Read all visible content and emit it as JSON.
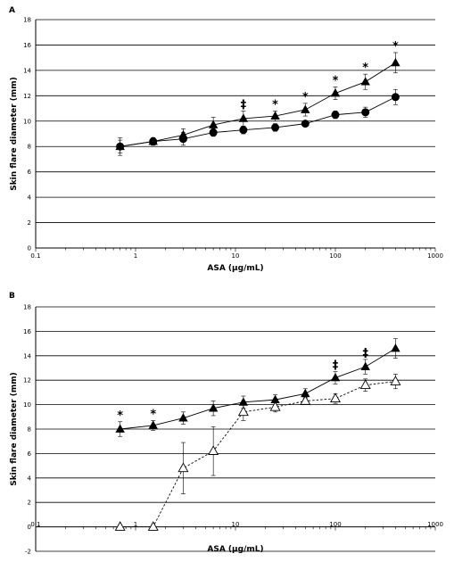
{
  "chart_data": [
    {
      "panel_label": "A",
      "type": "line",
      "xlabel": "ASA (µg/mL)",
      "ylabel": "Skin flare diameter (mm)",
      "x_scale": "log",
      "xlim": [
        0.1,
        1000
      ],
      "ylim": [
        0,
        18
      ],
      "x_ticks": [
        0.1,
        1,
        10,
        100,
        1000
      ],
      "x_tick_labels": [
        "0.1",
        "1",
        "10",
        "100",
        "1000"
      ],
      "y_ticks": [
        0,
        2,
        4,
        6,
        8,
        10,
        12,
        14,
        16,
        18
      ],
      "y_tick_labels": [
        "0",
        "2",
        "4",
        "6",
        "8",
        "10",
        "12",
        "14",
        "16",
        "18"
      ],
      "grid": "horizontal",
      "series": [
        {
          "marker": "triangle-filled",
          "line": "solid",
          "points": [
            {
              "x": 0.7,
              "y": 8.0,
              "err": 0.5,
              "sig": ""
            },
            {
              "x": 1.5,
              "y": 8.4,
              "err": 0.3,
              "sig": ""
            },
            {
              "x": 3,
              "y": 8.9,
              "err": 0.5,
              "sig": ""
            },
            {
              "x": 6,
              "y": 9.7,
              "err": 0.6,
              "sig": ""
            },
            {
              "x": 12,
              "y": 10.2,
              "err": 0.6,
              "sig": "‡"
            },
            {
              "x": 25,
              "y": 10.4,
              "err": 0.4,
              "sig": "*"
            },
            {
              "x": 50,
              "y": 10.9,
              "err": 0.5,
              "sig": "*"
            },
            {
              "x": 100,
              "y": 12.2,
              "err": 0.5,
              "sig": "*"
            },
            {
              "x": 200,
              "y": 13.1,
              "err": 0.6,
              "sig": "*"
            },
            {
              "x": 400,
              "y": 14.6,
              "err": 0.8,
              "sig": "*"
            }
          ]
        },
        {
          "marker": "circle-filled",
          "line": "solid",
          "points": [
            {
              "x": 0.7,
              "y": 8.0,
              "err": 0.7
            },
            {
              "x": 1.5,
              "y": 8.4,
              "err": 0.3
            },
            {
              "x": 3,
              "y": 8.6,
              "err": 0.5
            },
            {
              "x": 6,
              "y": 9.1,
              "err": 0.3
            },
            {
              "x": 12,
              "y": 9.3,
              "err": 0.3
            },
            {
              "x": 25,
              "y": 9.5,
              "err": 0.3
            },
            {
              "x": 50,
              "y": 9.8,
              "err": 0.2
            },
            {
              "x": 100,
              "y": 10.5,
              "err": 0.3
            },
            {
              "x": 200,
              "y": 10.7,
              "err": 0.4
            },
            {
              "x": 400,
              "y": 11.9,
              "err": 0.6
            }
          ]
        }
      ]
    },
    {
      "panel_label": "B",
      "type": "line",
      "xlabel": "ASA (µg/mL)",
      "ylabel": "Skin flare diameter (mm)",
      "x_scale": "log",
      "xlim": [
        0.1,
        1000
      ],
      "ylim": [
        -2,
        18
      ],
      "x_ticks": [
        0.1,
        1,
        10,
        100,
        1000
      ],
      "x_tick_labels": [
        "0.1",
        "1",
        "10",
        "100",
        "1000"
      ],
      "y_ticks": [
        -2,
        0,
        2,
        4,
        6,
        8,
        10,
        12,
        14,
        16,
        18
      ],
      "y_tick_labels": [
        "-2",
        "0",
        "2",
        "4",
        "6",
        "8",
        "10",
        "12",
        "14",
        "16",
        "18"
      ],
      "grid": "horizontal",
      "series": [
        {
          "marker": "triangle-filled",
          "line": "solid",
          "points": [
            {
              "x": 0.7,
              "y": 8.0,
              "err": 0.6,
              "sig": "*"
            },
            {
              "x": 1.5,
              "y": 8.3,
              "err": 0.4,
              "sig": "*"
            },
            {
              "x": 3,
              "y": 8.9,
              "err": 0.5,
              "sig": ""
            },
            {
              "x": 6,
              "y": 9.7,
              "err": 0.6,
              "sig": ""
            },
            {
              "x": 12,
              "y": 10.2,
              "err": 0.5,
              "sig": ""
            },
            {
              "x": 25,
              "y": 10.4,
              "err": 0.4,
              "sig": ""
            },
            {
              "x": 50,
              "y": 10.9,
              "err": 0.4,
              "sig": ""
            },
            {
              "x": 100,
              "y": 12.2,
              "err": 0.5,
              "sig": "‡"
            },
            {
              "x": 200,
              "y": 13.1,
              "err": 0.6,
              "sig": "‡"
            },
            {
              "x": 400,
              "y": 14.6,
              "err": 0.8,
              "sig": ""
            }
          ]
        },
        {
          "marker": "triangle-open",
          "line": "dashed",
          "points": [
            {
              "x": 0.7,
              "y": 0,
              "err": 0
            },
            {
              "x": 1.5,
              "y": 0,
              "err": 0
            },
            {
              "x": 3,
              "y": 4.8,
              "err": 2.1
            },
            {
              "x": 6,
              "y": 6.2,
              "err": 2.0
            },
            {
              "x": 12,
              "y": 9.4,
              "err": 0.7
            },
            {
              "x": 25,
              "y": 9.8,
              "err": 0.4
            },
            {
              "x": 50,
              "y": 10.3,
              "err": 0.3
            },
            {
              "x": 100,
              "y": 10.5,
              "err": 0.4
            },
            {
              "x": 200,
              "y": 11.6,
              "err": 0.5
            },
            {
              "x": 400,
              "y": 11.9,
              "err": 0.6
            }
          ]
        }
      ]
    }
  ]
}
